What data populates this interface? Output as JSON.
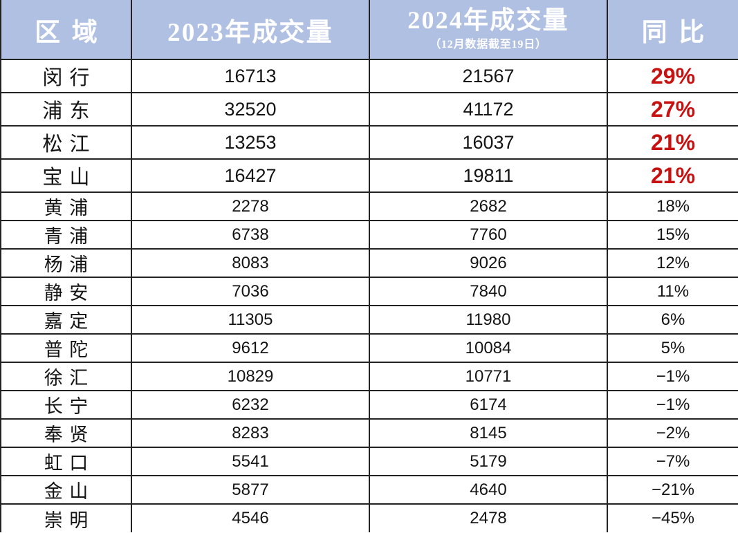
{
  "table": {
    "columns": [
      {
        "key": "district",
        "label": "区域"
      },
      {
        "key": "y2023",
        "label": "2023年成交量"
      },
      {
        "key": "y2024",
        "label": "2024年成交量",
        "sublabel": "（12月数据截至19日）"
      },
      {
        "key": "yoy",
        "label": "同比"
      }
    ],
    "rows": [
      {
        "district": "闵行",
        "y2023": "16713",
        "y2024": "21567",
        "yoy": "29%",
        "highlight": true
      },
      {
        "district": "浦东",
        "y2023": "32520",
        "y2024": "41172",
        "yoy": "27%",
        "highlight": true
      },
      {
        "district": "松江",
        "y2023": "13253",
        "y2024": "16037",
        "yoy": "21%",
        "highlight": true
      },
      {
        "district": "宝山",
        "y2023": "16427",
        "y2024": "19811",
        "yoy": "21%",
        "highlight": true
      },
      {
        "district": "黄浦",
        "y2023": "2278",
        "y2024": "2682",
        "yoy": "18%",
        "highlight": false
      },
      {
        "district": "青浦",
        "y2023": "6738",
        "y2024": "7760",
        "yoy": "15%",
        "highlight": false
      },
      {
        "district": "杨浦",
        "y2023": "8083",
        "y2024": "9026",
        "yoy": "12%",
        "highlight": false
      },
      {
        "district": "静安",
        "y2023": "7036",
        "y2024": "7840",
        "yoy": "11%",
        "highlight": false
      },
      {
        "district": "嘉定",
        "y2023": "11305",
        "y2024": "11980",
        "yoy": "6%",
        "highlight": false
      },
      {
        "district": "普陀",
        "y2023": "9612",
        "y2024": "10084",
        "yoy": "5%",
        "highlight": false
      },
      {
        "district": "徐汇",
        "y2023": "10829",
        "y2024": "10771",
        "yoy": "−1%",
        "highlight": false
      },
      {
        "district": "长宁",
        "y2023": "6232",
        "y2024": "6174",
        "yoy": "−1%",
        "highlight": false
      },
      {
        "district": "奉贤",
        "y2023": "8283",
        "y2024": "8145",
        "yoy": "−2%",
        "highlight": false
      },
      {
        "district": "虹口",
        "y2023": "5541",
        "y2024": "5179",
        "yoy": "−7%",
        "highlight": false
      },
      {
        "district": "金山",
        "y2023": "5877",
        "y2024": "4640",
        "yoy": "−21%",
        "highlight": false
      },
      {
        "district": "崇明",
        "y2023": "4546",
        "y2024": "2478",
        "yoy": "−45%",
        "highlight": false
      }
    ],
    "colors": {
      "header_bg": "#b0c0e3",
      "header_text": "#ffffff",
      "highlight_red": "#c81111",
      "text": "#141414",
      "border": "#222222",
      "row_bg": "#ffffff"
    }
  }
}
